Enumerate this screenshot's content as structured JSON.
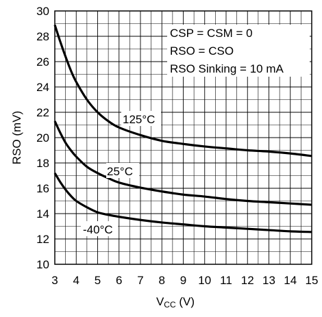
{
  "chart_data": {
    "type": "line",
    "xlabel": "V",
    "xlabel_sub": "CC",
    "xlabel_unit": " (V)",
    "ylabel": "RSO (mV)",
    "xlim": [
      3,
      15
    ],
    "ylim": [
      10,
      30
    ],
    "grid": true,
    "x_ticks": [
      3,
      4,
      5,
      6,
      7,
      8,
      9,
      10,
      11,
      12,
      13,
      14,
      15
    ],
    "y_ticks": [
      10,
      12,
      14,
      16,
      18,
      20,
      22,
      24,
      26,
      28,
      30
    ],
    "annotations": [
      "CSP = CSM = 0",
      "RSO = CSO",
      "RSO Sinking = 10 mA"
    ],
    "series": [
      {
        "name": "125°C",
        "x": [
          3.0,
          3.25,
          3.5,
          3.75,
          4.0,
          4.5,
          5.0,
          5.5,
          6.0,
          7.0,
          8.0,
          9.0,
          10.0,
          11.0,
          12.0,
          13.0,
          14.0,
          15.0
        ],
        "values": [
          28.9,
          27.6,
          26.4,
          25.3,
          24.4,
          23.0,
          22.0,
          21.3,
          20.8,
          20.2,
          19.75,
          19.5,
          19.3,
          19.15,
          19.0,
          18.9,
          18.75,
          18.55
        ]
      },
      {
        "name": "25°C",
        "x": [
          3.0,
          3.25,
          3.5,
          3.75,
          4.0,
          4.5,
          5.0,
          5.5,
          6.0,
          7.0,
          8.0,
          9.0,
          10.0,
          11.0,
          12.0,
          13.0,
          14.0,
          15.0
        ],
        "values": [
          21.3,
          20.4,
          19.6,
          19.0,
          18.5,
          17.7,
          17.2,
          16.8,
          16.45,
          16.05,
          15.75,
          15.5,
          15.35,
          15.15,
          15.0,
          14.9,
          14.8,
          14.7
        ]
      },
      {
        "name": "-40°C",
        "x": [
          3.0,
          3.25,
          3.5,
          3.75,
          4.0,
          4.5,
          5.0,
          5.5,
          6.0,
          7.0,
          8.0,
          9.0,
          10.0,
          11.0,
          12.0,
          13.0,
          14.0,
          15.0
        ],
        "values": [
          17.2,
          16.5,
          15.9,
          15.4,
          15.0,
          14.5,
          14.1,
          13.9,
          13.75,
          13.5,
          13.3,
          13.15,
          13.0,
          12.9,
          12.8,
          12.7,
          12.6,
          12.55
        ]
      }
    ]
  }
}
